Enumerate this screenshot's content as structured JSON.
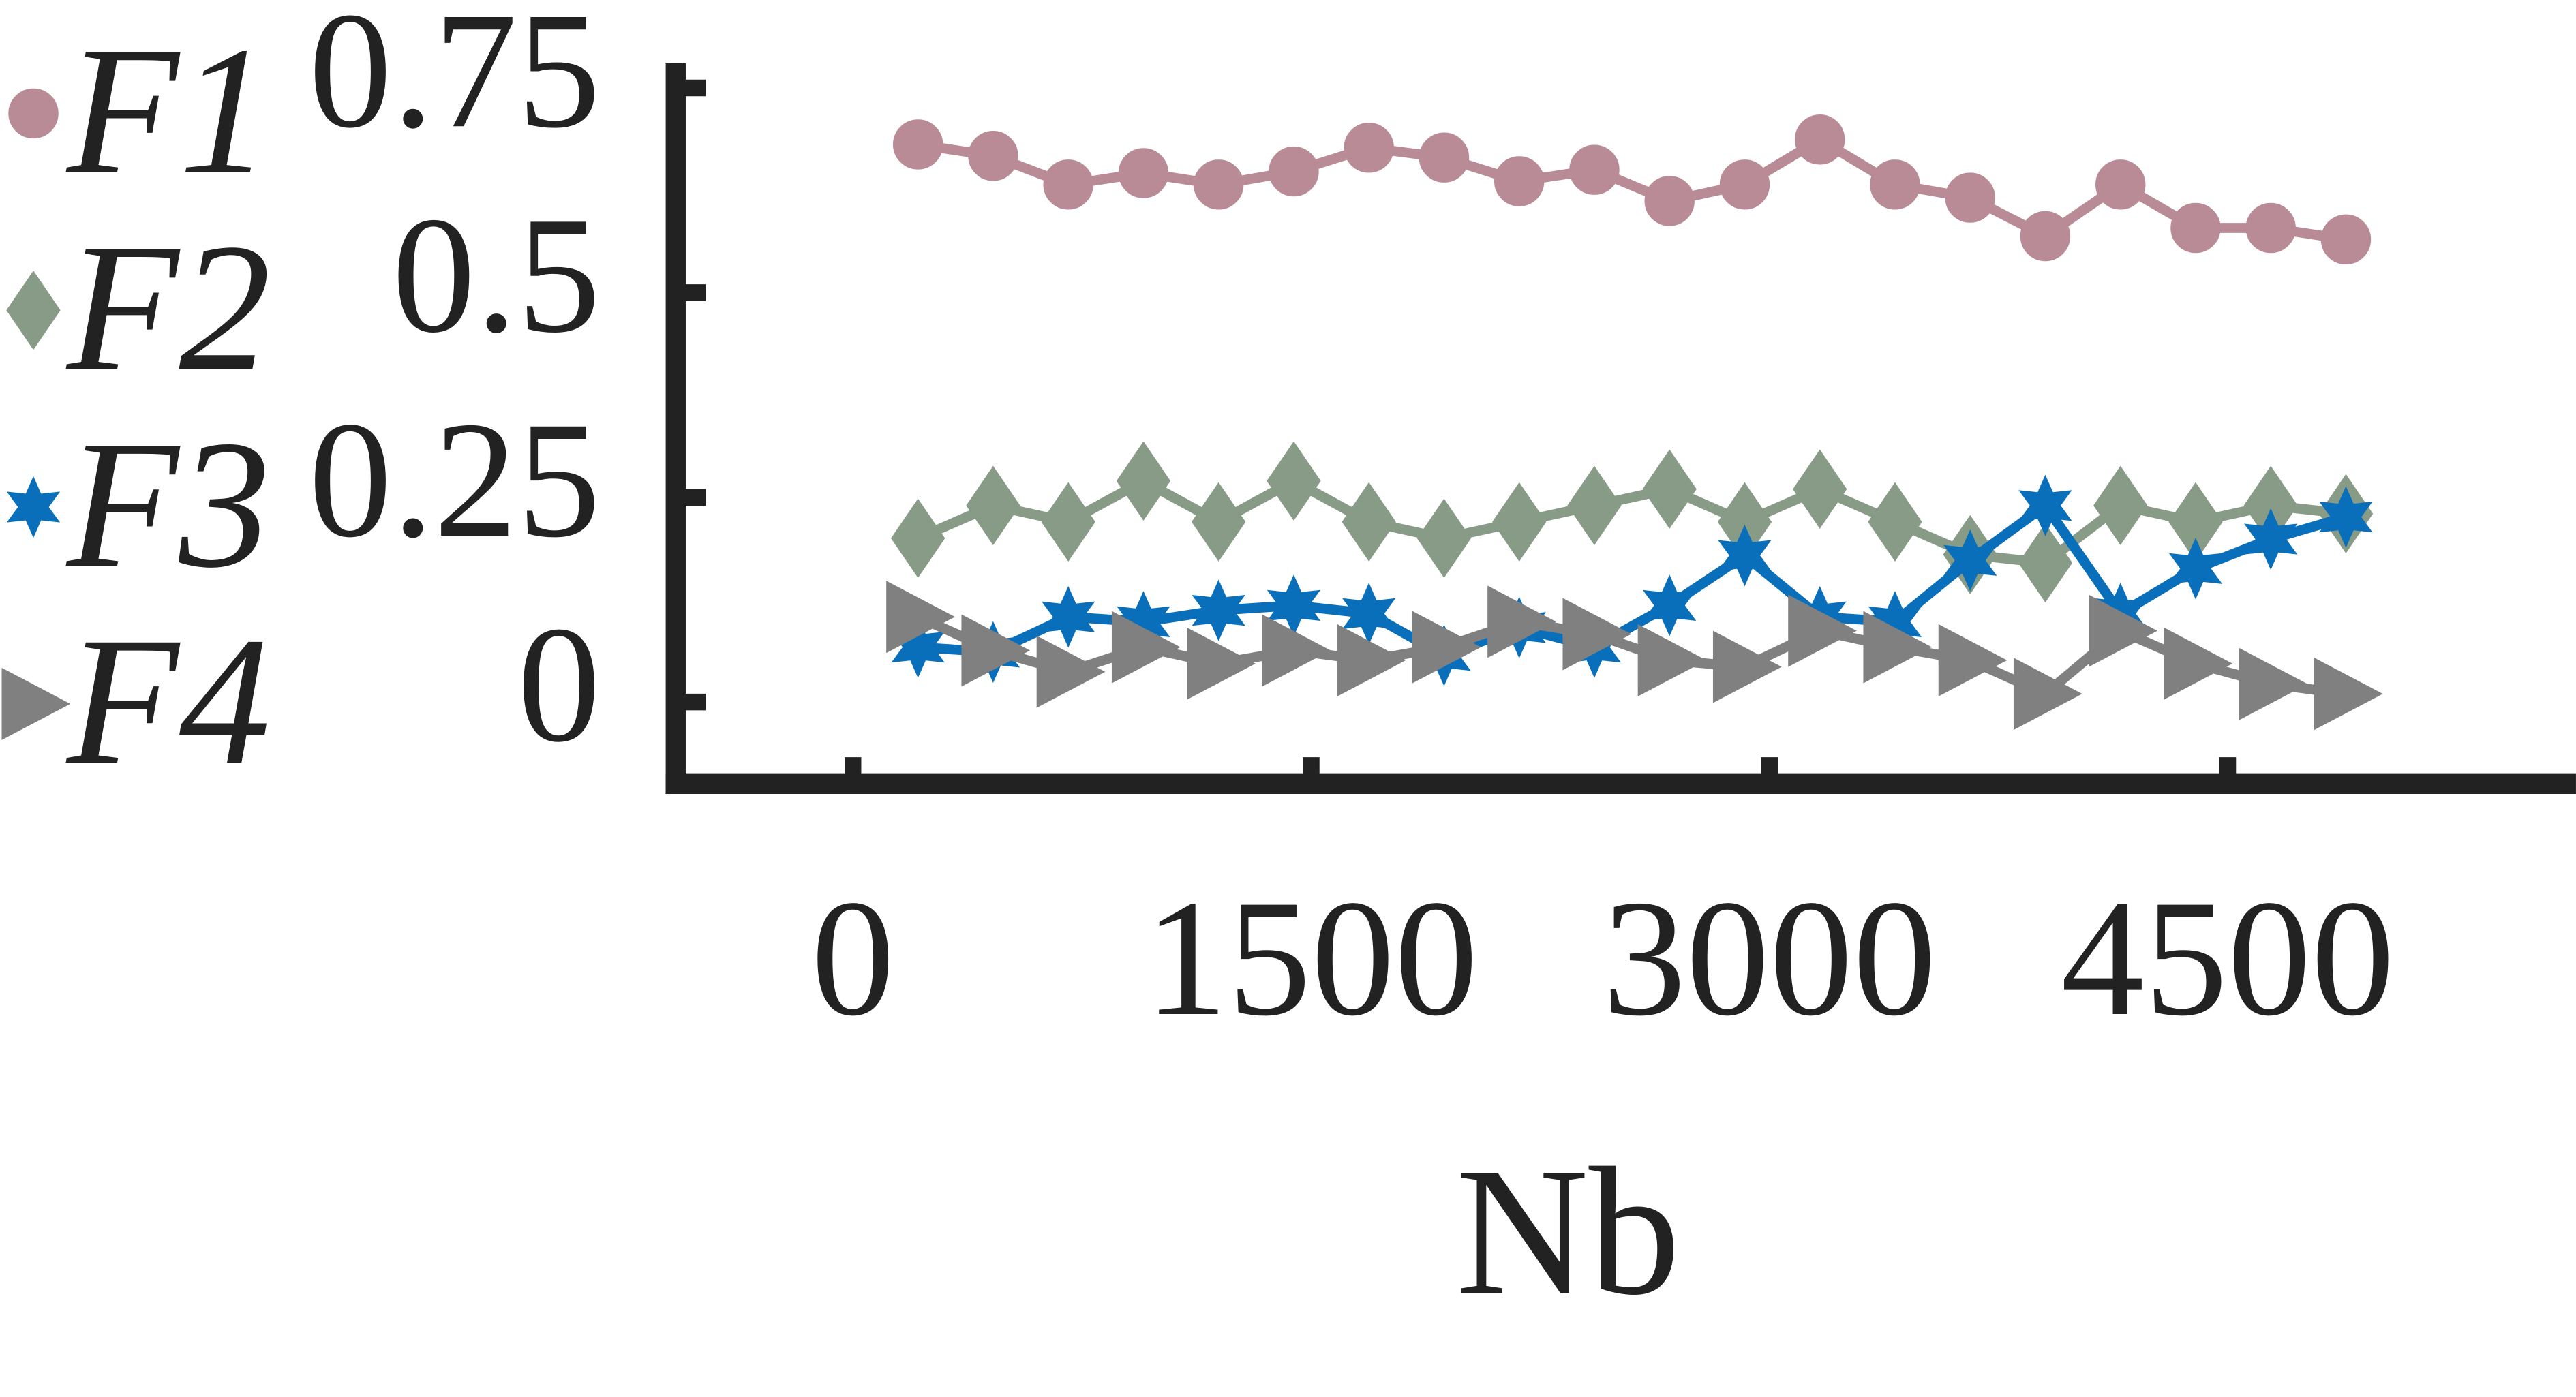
{
  "chart_data": {
    "type": "line",
    "xlabel": "Nb",
    "x": [
      213,
      459,
      705,
      951,
      1197,
      1443,
      1689,
      1935,
      2181,
      2427,
      2673,
      2919,
      3165,
      3411,
      3657,
      3903,
      4149,
      4395,
      4641,
      4887
    ],
    "series": [
      {
        "name": "F1",
        "color": "#b98b97",
        "marker": "circle",
        "values": [
          0.681,
          0.667,
          0.632,
          0.646,
          0.632,
          0.648,
          0.677,
          0.665,
          0.636,
          0.65,
          0.612,
          0.632,
          0.687,
          0.632,
          0.616,
          0.569,
          0.632,
          0.579,
          0.579,
          0.565
        ]
      },
      {
        "name": "F2",
        "color": "#879b86",
        "marker": "diamond",
        "values": [
          0.2,
          0.24,
          0.22,
          0.27,
          0.22,
          0.27,
          0.22,
          0.2,
          0.22,
          0.24,
          0.26,
          0.22,
          0.26,
          0.22,
          0.18,
          0.17,
          0.24,
          0.22,
          0.24,
          0.23
        ]
      },
      {
        "name": "F3",
        "color": "#0a6fba",
        "marker": "star",
        "values": [
          0.067,
          0.061,
          0.104,
          0.098,
          0.112,
          0.118,
          0.108,
          0.057,
          0.091,
          0.067,
          0.118,
          0.179,
          0.104,
          0.098,
          0.173,
          0.24,
          0.108,
          0.163,
          0.199,
          0.226
        ]
      },
      {
        "name": "F4",
        "color": "#808080",
        "marker": "triangle",
        "values": [
          0.104,
          0.063,
          0.037,
          0.067,
          0.047,
          0.063,
          0.051,
          0.067,
          0.098,
          0.083,
          0.051,
          0.043,
          0.087,
          0.067,
          0.051,
          0.01,
          0.087,
          0.047,
          0.022,
          0.01
        ]
      }
    ],
    "xlim": [
      -580,
      5640
    ],
    "xticks": [
      0,
      1500,
      3000,
      4500
    ],
    "ylim": [
      -0.1,
      0.78
    ],
    "yticks": [
      0,
      0.25,
      0.5,
      0.75
    ],
    "legend": "left"
  }
}
